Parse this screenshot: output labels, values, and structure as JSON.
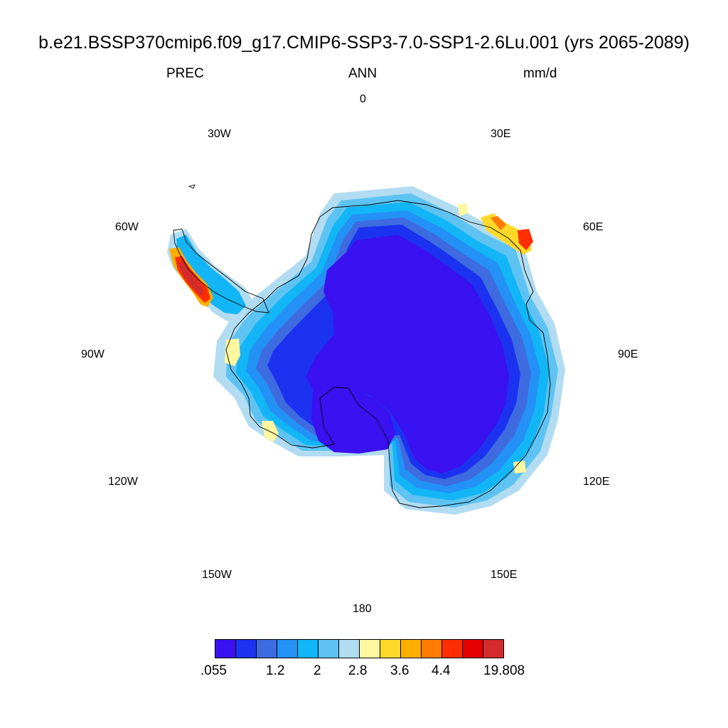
{
  "title": "b.e21.BSSP370cmip6.f09_g17.CMIP6-SSP3-7.0-SSP1-2.6Lu.001 (yrs 2065-2089)",
  "subtitle": {
    "left": "PREC",
    "center": "ANN",
    "right": "mm/d"
  },
  "longitude_labels": {
    "l0": "0",
    "l30e": "30E",
    "l60e": "60E",
    "l90e": "90E",
    "l120e": "120E",
    "l150e": "150E",
    "l180": "180",
    "l150w": "150W",
    "l120w": "120W",
    "l90w": "90W",
    "l60w": "60W",
    "l30w": "30W"
  },
  "colorbar": {
    "colors": [
      "#3a11f0",
      "#1b33f0",
      "#3e6be0",
      "#2391f5",
      "#12b5f5",
      "#5ec3f2",
      "#b1dcf2",
      "#fff7a0",
      "#ffd92a",
      "#ffae00",
      "#ff7c00",
      "#ff2e00",
      "#e40000",
      "#d22c2c"
    ],
    "labels": [
      ".055",
      "1.2",
      "2",
      "2.8",
      "3.6",
      "4.4",
      "19.808"
    ]
  },
  "map_colors": {
    "deep": "#3a11f0",
    "blue": "#1b33f0",
    "mid": "#3e6be0",
    "azure": "#2391f5",
    "sky": "#12b5f5",
    "light": "#5ec3f2",
    "pale": "#b1dcf2",
    "yellow": "#fff7a0",
    "gold": "#ffd92a",
    "orange": "#ffae00",
    "dark_orange": "#ff7c00",
    "red": "#ff2e00",
    "crimson": "#d22c2c"
  }
}
